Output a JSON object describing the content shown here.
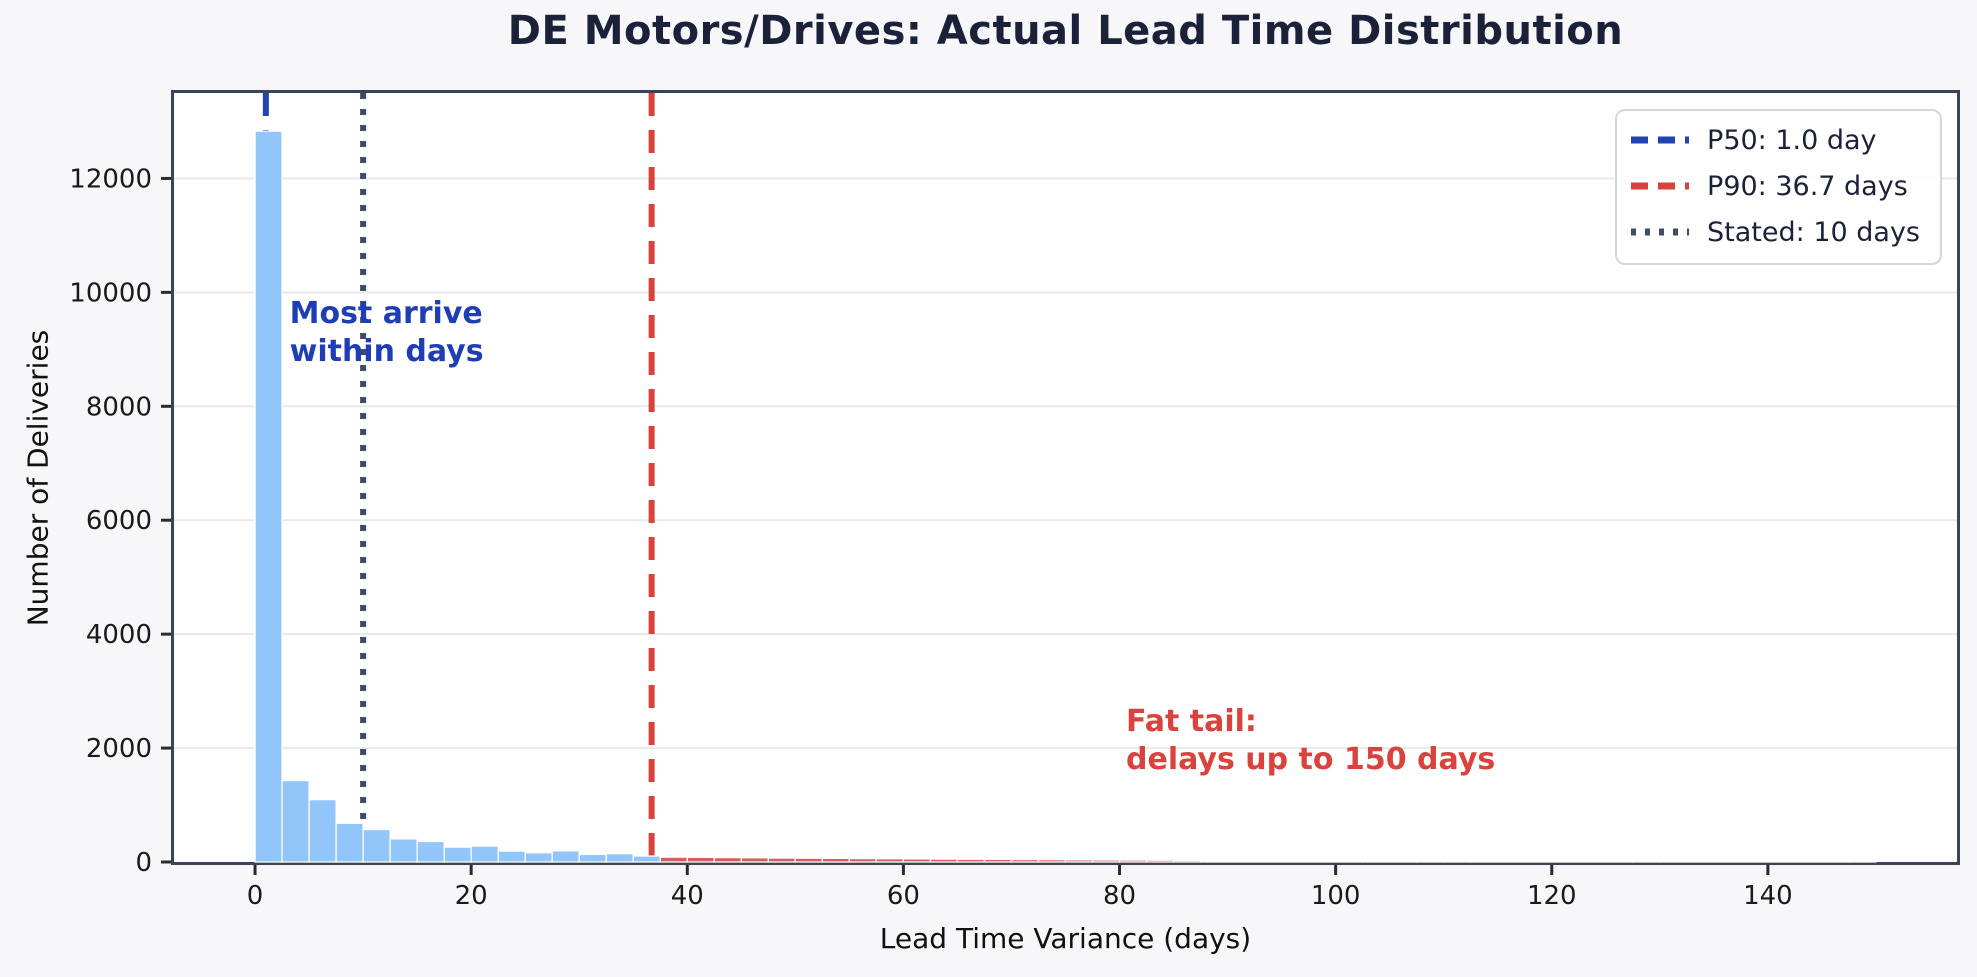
{
  "chart_data": {
    "type": "bar",
    "title": "DE Motors/Drives: Actual Lead Time Distribution",
    "xlabel": "Lead Time Variance (days)",
    "ylabel": "Number of Deliveries",
    "xlim": [
      -7.5,
      157.5
    ],
    "ylim": [
      0,
      13500
    ],
    "xticks": [
      0,
      20,
      40,
      60,
      80,
      100,
      120,
      140
    ],
    "yticks": [
      0,
      2000,
      4000,
      6000,
      8000,
      10000,
      12000
    ],
    "grid": "horizontal-only",
    "legend_position": "upper-right",
    "bin_width_days": 2.5,
    "bin_start_day": 0,
    "tail_from_day": 37.5,
    "counts": [
      12830,
      1430,
      1095,
      680,
      570,
      405,
      360,
      262,
      280,
      192,
      163,
      197,
      134,
      146,
      105,
      85,
      82,
      78,
      74,
      70,
      67,
      64,
      60,
      57,
      54,
      51,
      48,
      46,
      43,
      41,
      38,
      36,
      34,
      32,
      26,
      23,
      20,
      18,
      16,
      15,
      14,
      13,
      12,
      11,
      10,
      10,
      12,
      9,
      10,
      8,
      7,
      6,
      8,
      7,
      5,
      4,
      3,
      3,
      2,
      2
    ],
    "bar_colors": {
      "main": "#92c5f9",
      "tail": "#d2605d"
    },
    "vlines": [
      {
        "x": 1.0,
        "style": "dashed",
        "color": "#2243b0",
        "label": "P50: 1.0 day"
      },
      {
        "x": 36.7,
        "style": "dashed",
        "color": "#d9423d",
        "label": "P90: 36.7 days"
      },
      {
        "x": 10.0,
        "style": "dotted",
        "color": "#414b66",
        "label": "Stated: 10 days"
      }
    ],
    "annotations": [
      {
        "text": "Most arrive\nwithin days",
        "x_day": 3.2,
        "y_count": 9950,
        "color": "#1f3db5"
      },
      {
        "text": "Fat tail:\ndelays up to 150 days",
        "x_day": 80.6,
        "y_count": 2790,
        "color": "#d9423d"
      }
    ],
    "colors": {
      "figure_background": "#f7f7f9",
      "plot_background": "#ffffff",
      "spine": "#3b4359",
      "grid": "#e9e9ec",
      "tick": "#2b2b2b",
      "title_text": "#1b2138",
      "tick_text": "#1a1a1a"
    }
  }
}
